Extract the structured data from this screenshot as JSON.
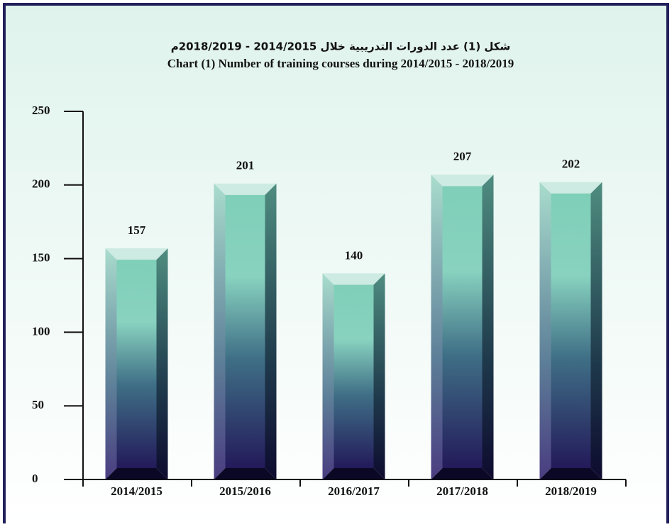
{
  "chart_data": {
    "type": "bar",
    "title": "شكل (1) عدد الدورات التدريبية خلال 2014/2015 - 2018/2019م",
    "subtitle": "Chart (1) Number of training courses during 2014/2015 - 2018/2019",
    "categories": [
      "2014/2015",
      "2015/2016",
      "2016/2017",
      "2017/2018",
      "2018/2019"
    ],
    "values": [
      157,
      201,
      140,
      207,
      202
    ],
    "ylim": [
      0,
      250
    ],
    "yticks": [
      0,
      50,
      100,
      150,
      200,
      250
    ]
  }
}
